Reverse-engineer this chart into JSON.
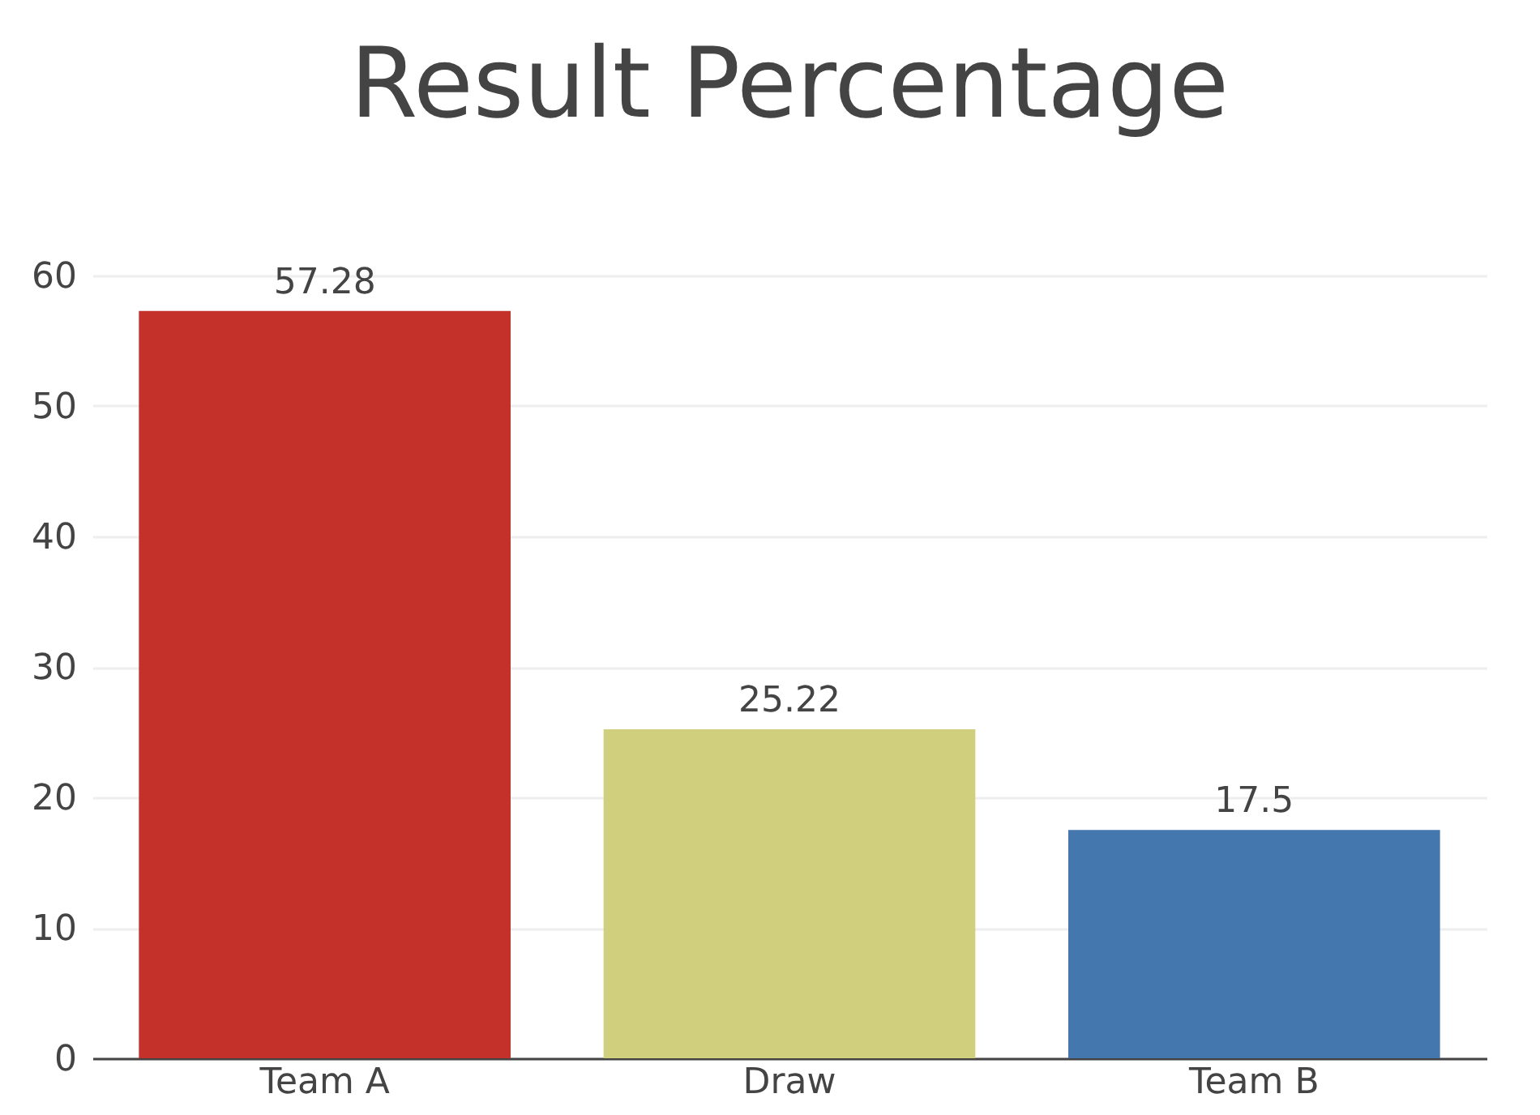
{
  "chart_data": {
    "type": "bar",
    "title": "Result Percentage",
    "categories": [
      "Team A",
      "Draw",
      "Team B"
    ],
    "values": [
      57.28,
      25.22,
      17.5
    ],
    "colors": [
      "#c4312b",
      "#d0cf7d",
      "#4477ae"
    ],
    "ylim": [
      0,
      60
    ],
    "yticks": [
      0,
      10,
      20,
      30,
      40,
      50,
      60
    ],
    "grid": "y",
    "data_labels": true
  }
}
